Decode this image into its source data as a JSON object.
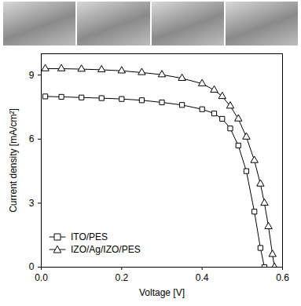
{
  "chart_data": {
    "type": "line",
    "xlabel": "Voltage [V]",
    "ylabel": "Current density [mA/cm²]",
    "xlim": [
      0.0,
      0.6
    ],
    "ylim": [
      0,
      10
    ],
    "xticks": [
      {
        "value": 0.0,
        "label": "0.0"
      },
      0.2,
      0.4,
      0.6
    ],
    "yticks": [
      0,
      3,
      6,
      9
    ],
    "legend": "bottom-left",
    "x": [
      0.01,
      0.05,
      0.1,
      0.15,
      0.2,
      0.25,
      0.3,
      0.35,
      0.4,
      0.43,
      0.45,
      0.47,
      0.49,
      0.51,
      0.53,
      0.545,
      0.555,
      0.565,
      0.575,
      0.58
    ],
    "series": [
      {
        "name": "ITO/PES",
        "color": "#000000",
        "marker": "square",
        "line_style": "solid",
        "values": [
          8.0,
          7.98,
          7.95,
          7.92,
          7.88,
          7.82,
          7.72,
          7.6,
          7.4,
          7.2,
          6.95,
          6.5,
          5.7,
          4.5,
          2.6,
          0.9,
          0.0,
          null,
          null,
          null
        ]
      },
      {
        "name": "IZO/Ag/IZO/PES",
        "color": "#000000",
        "marker": "triangle",
        "line_style": "solid",
        "values": [
          9.3,
          9.3,
          9.28,
          9.25,
          9.2,
          9.12,
          9.02,
          8.85,
          8.6,
          8.3,
          8.0,
          7.55,
          6.95,
          6.1,
          5.0,
          3.9,
          3.0,
          1.9,
          0.6,
          0.0
        ]
      }
    ]
  }
}
